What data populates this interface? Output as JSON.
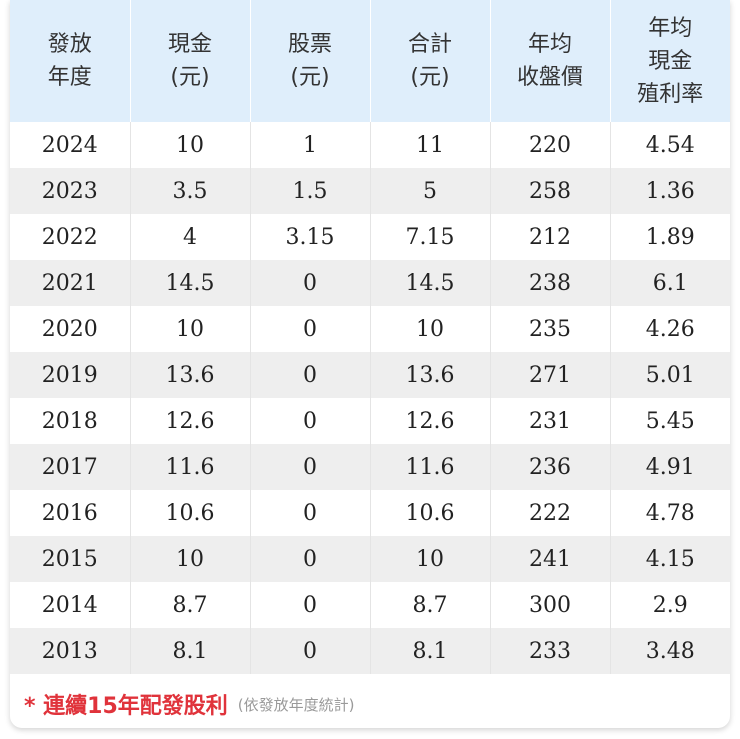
{
  "table": {
    "headers": [
      [
        "發放",
        "年度"
      ],
      [
        "現金",
        "(元)"
      ],
      [
        "股票",
        "(元)"
      ],
      [
        "合計",
        "(元)"
      ],
      [
        "年均",
        "收盤價"
      ],
      [
        "年均",
        "現金",
        "殖利率"
      ]
    ],
    "rows": [
      [
        "2024",
        "10",
        "1",
        "11",
        "220",
        "4.54"
      ],
      [
        "2023",
        "3.5",
        "1.5",
        "5",
        "258",
        "1.36"
      ],
      [
        "2022",
        "4",
        "3.15",
        "7.15",
        "212",
        "1.89"
      ],
      [
        "2021",
        "14.5",
        "0",
        "14.5",
        "238",
        "6.1"
      ],
      [
        "2020",
        "10",
        "0",
        "10",
        "235",
        "4.26"
      ],
      [
        "2019",
        "13.6",
        "0",
        "13.6",
        "271",
        "5.01"
      ],
      [
        "2018",
        "12.6",
        "0",
        "12.6",
        "231",
        "5.45"
      ],
      [
        "2017",
        "11.6",
        "0",
        "11.6",
        "236",
        "4.91"
      ],
      [
        "2016",
        "10.6",
        "0",
        "10.6",
        "222",
        "4.78"
      ],
      [
        "2015",
        "10",
        "0",
        "10",
        "241",
        "4.15"
      ],
      [
        "2014",
        "8.7",
        "0",
        "8.7",
        "300",
        "2.9"
      ],
      [
        "2013",
        "8.1",
        "0",
        "8.1",
        "233",
        "3.48"
      ]
    ]
  },
  "footer": {
    "note": "* 連續15年配發股利",
    "sub": "(依發放年度統計)"
  },
  "colors": {
    "header_bg": "#dfeefb",
    "stripe_bg": "#eeeeee",
    "note_red": "#e0333b"
  }
}
